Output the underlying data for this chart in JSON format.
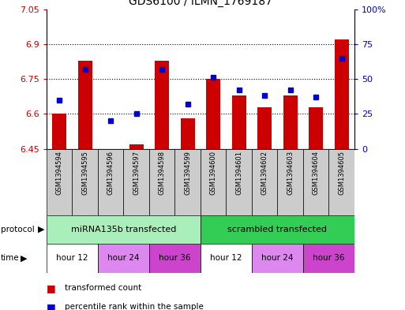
{
  "title": "GDS6100 / ILMN_1769187",
  "samples": [
    "GSM1394594",
    "GSM1394595",
    "GSM1394596",
    "GSM1394597",
    "GSM1394598",
    "GSM1394599",
    "GSM1394600",
    "GSM1394601",
    "GSM1394602",
    "GSM1394603",
    "GSM1394604",
    "GSM1394605"
  ],
  "transformed_count": [
    6.6,
    6.83,
    6.45,
    6.47,
    6.83,
    6.58,
    6.75,
    6.68,
    6.63,
    6.68,
    6.63,
    6.92
  ],
  "percentile_rank": [
    35,
    57,
    20,
    25,
    57,
    32,
    51,
    42,
    38,
    42,
    37,
    65
  ],
  "ylim_left": [
    6.45,
    7.05
  ],
  "ylim_right": [
    0,
    100
  ],
  "yticks_left": [
    6.45,
    6.6,
    6.75,
    6.9,
    7.05
  ],
  "yticks_right": [
    0,
    25,
    50,
    75,
    100
  ],
  "ytick_labels_right": [
    "0",
    "25",
    "50",
    "75",
    "100%"
  ],
  "bar_color": "#cc0000",
  "dot_color": "#0000cc",
  "protocol_groups": [
    {
      "label": "miRNA135b transfected",
      "start": 0,
      "end": 6,
      "color": "#aaeebb"
    },
    {
      "label": "scrambled transfected",
      "start": 6,
      "end": 12,
      "color": "#33cc55"
    }
  ],
  "time_colors": {
    "hour 12": "#ffffff",
    "hour 24": "#dd88ee",
    "hour 36": "#cc44cc"
  },
  "time_groups": [
    {
      "label": "hour 12",
      "start": 0,
      "end": 2
    },
    {
      "label": "hour 24",
      "start": 2,
      "end": 4
    },
    {
      "label": "hour 36",
      "start": 4,
      "end": 6
    },
    {
      "label": "hour 12",
      "start": 6,
      "end": 8
    },
    {
      "label": "hour 24",
      "start": 8,
      "end": 10
    },
    {
      "label": "hour 36",
      "start": 10,
      "end": 12
    }
  ],
  "legend_items": [
    {
      "label": "transformed count",
      "color": "#cc0000"
    },
    {
      "label": "percentile rank within the sample",
      "color": "#0000cc"
    }
  ],
  "bg_color": "#ffffff",
  "sample_bg_color": "#cccccc",
  "grid_yticks": [
    6.6,
    6.75,
    6.9
  ],
  "n_samples": 12
}
